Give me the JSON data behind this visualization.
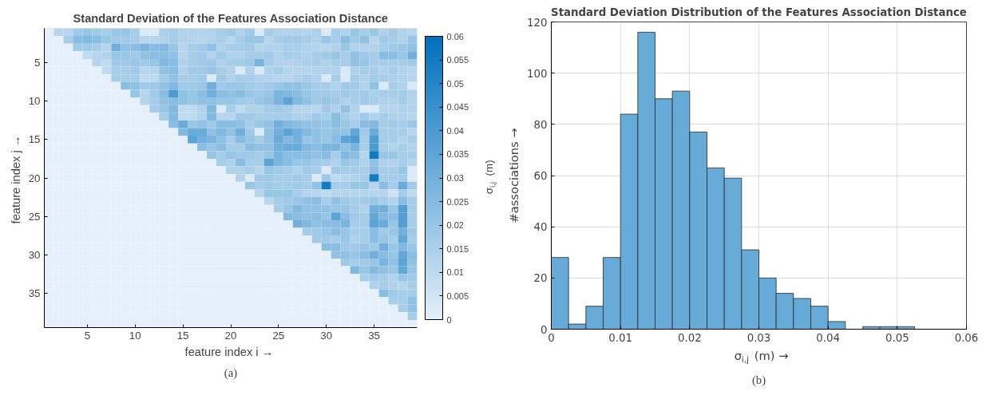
{
  "chart_data": [
    {
      "type": "heatmap",
      "title": "Standard Deviation of the Features Association Distance",
      "xlabel": "feature index i  →",
      "ylabel": "feature index j  →",
      "clabel": "σ$_{i,j}$ (m)",
      "annotations": [
        "(a)"
      ],
      "categories": [
        null,
        null,
        null,
        null,
        "5",
        null,
        null,
        null,
        null,
        "10",
        null,
        null,
        null,
        null,
        "15",
        null,
        null,
        null,
        null,
        "20",
        null,
        null,
        null,
        null,
        "25",
        null,
        null,
        null,
        null,
        "30",
        null,
        null,
        null,
        null,
        "35",
        null,
        null,
        null,
        null
      ],
      "y_categories": [
        null,
        null,
        null,
        null,
        "5",
        null,
        null,
        null,
        null,
        "10",
        null,
        null,
        null,
        null,
        "15",
        null,
        null,
        null,
        null,
        "20",
        null,
        null,
        null,
        null,
        "25",
        null,
        null,
        null,
        null,
        "30",
        null,
        null,
        null,
        null,
        "35",
        null,
        null,
        null,
        null
      ],
      "clim": [
        0,
        0.06
      ],
      "cticks": [
        0,
        0.005,
        0.01,
        0.015,
        0.02,
        0.025,
        0.03,
        0.035,
        0.04,
        0.045,
        0.05,
        0.055,
        0.06
      ],
      "cells": [
        [
          0,
          0.012,
          0.012,
          0.018,
          0.02,
          0.018,
          0.016,
          0.02,
          0.02,
          0.016,
          0.003,
          0.003,
          0.015,
          0.016,
          0.014,
          0.014,
          0.013,
          0.014,
          0.016,
          0.018,
          0.014,
          0.018,
          0.003,
          0.016,
          0.014,
          0.013,
          0.014,
          0.013,
          0.015,
          0.003,
          0.016,
          0.014,
          0.02,
          0.016,
          0.02,
          0.014,
          0.017,
          0.014,
          0.012
        ],
        [
          0,
          0,
          0.016,
          0.024,
          0.026,
          0.024,
          0.02,
          0.018,
          0.018,
          0.016,
          0.012,
          0.012,
          0.014,
          0.016,
          0.014,
          0.013,
          0.012,
          0.014,
          0.015,
          0.012,
          0.016,
          0.02,
          0.02,
          0.012,
          0.016,
          0.018,
          0.018,
          0.016,
          0.014,
          0.02,
          0.016,
          0.024,
          0.018,
          0.022,
          0.012,
          0.018,
          0.016,
          0.014,
          0.02
        ],
        [
          0,
          0,
          0,
          0.018,
          0.018,
          0.016,
          0.012,
          0.03,
          0.022,
          0.024,
          0.028,
          0.024,
          0.026,
          0.02,
          0.012,
          0.016,
          0.018,
          0.022,
          0.014,
          0.016,
          0.016,
          0.018,
          0.012,
          0.014,
          0.014,
          0.016,
          0.015,
          0.014,
          0.013,
          0.012,
          0.014,
          0.02,
          0.014,
          0.013,
          0.014,
          0.016,
          0.018,
          0.02,
          0.022
        ],
        [
          0,
          0,
          0,
          0,
          0.01,
          0.012,
          0.014,
          0.02,
          0.02,
          0.018,
          0.022,
          0.024,
          0.024,
          0.022,
          0.012,
          0.016,
          0.018,
          0.014,
          0.018,
          0.014,
          0.014,
          0.016,
          0.016,
          0.018,
          0.014,
          0.016,
          0.015,
          0.014,
          0.016,
          0.018,
          0.02,
          0.016,
          0.022,
          0.018,
          0.016,
          0.024,
          0.024,
          0.02,
          0.03
        ],
        [
          0,
          0,
          0,
          0,
          0,
          0.012,
          0.01,
          0.018,
          0.018,
          0.02,
          0.018,
          0.02,
          0.026,
          0.024,
          0.014,
          0.016,
          0.018,
          0.018,
          0.014,
          0.016,
          0.016,
          0.018,
          0.028,
          0.016,
          0.014,
          0.013,
          0.014,
          0.015,
          0.016,
          0.014,
          0.016,
          0.016,
          0.022,
          0.02,
          0.016,
          0.016,
          0.016,
          0.016,
          0.018
        ],
        [
          0,
          0,
          0,
          0,
          0,
          0,
          0.01,
          0.016,
          0.016,
          0.018,
          0.012,
          0.012,
          0.022,
          0.024,
          0.014,
          0.018,
          0.018,
          0.02,
          0.016,
          0.014,
          0.003,
          0.014,
          0.003,
          0.014,
          0.016,
          0.013,
          0.012,
          0.012,
          0.014,
          0.014,
          0.014,
          0.003,
          0.014,
          0.016,
          0.016,
          0.014,
          0.016,
          0.014,
          0.012
        ],
        [
          0,
          0,
          0,
          0,
          0,
          0,
          0,
          0.016,
          0.016,
          0.016,
          0.01,
          0.01,
          0.018,
          0.022,
          0.016,
          0.016,
          0.018,
          0.003,
          0.018,
          0.014,
          0.016,
          0.016,
          0.014,
          0.013,
          0.012,
          0.012,
          0.014,
          0.016,
          0.014,
          0.003,
          0.016,
          0.003,
          0.016,
          0.014,
          0.018,
          0.016,
          0.015,
          0.014,
          0.012
        ],
        [
          0,
          0,
          0,
          0,
          0,
          0,
          0,
          0,
          0.024,
          0.022,
          0.018,
          0.018,
          0.022,
          0.026,
          0.018,
          0.018,
          0.02,
          0.03,
          0.018,
          0.02,
          0.02,
          0.018,
          0.016,
          0.018,
          0.02,
          0.022,
          0.022,
          0.02,
          0.016,
          0.016,
          0.014,
          0.018,
          0.018,
          0.014,
          0.022,
          0.003,
          0.016,
          0.014,
          0.003
        ],
        [
          0,
          0,
          0,
          0,
          0,
          0,
          0,
          0,
          0,
          0.02,
          0.012,
          0.018,
          0.024,
          0.04,
          0.022,
          0.02,
          0.024,
          0.03,
          0.024,
          0.022,
          0.024,
          0.02,
          0.018,
          0.02,
          0.028,
          0.026,
          0.024,
          0.02,
          0.018,
          0.018,
          0.016,
          0.018,
          0.016,
          0.018,
          0.015,
          0.016,
          0.016,
          0.016,
          0.014
        ],
        [
          0,
          0,
          0,
          0,
          0,
          0,
          0,
          0,
          0,
          0,
          0.012,
          0.016,
          0.022,
          0.024,
          0.022,
          0.02,
          0.022,
          0.022,
          0.02,
          0.02,
          0.018,
          0.016,
          0.02,
          0.022,
          0.028,
          0.036,
          0.026,
          0.022,
          0.018,
          0.02,
          0.018,
          0.014,
          0.016,
          0.018,
          0.016,
          0.014,
          0.014,
          0.016,
          0.014
        ],
        [
          0,
          0,
          0,
          0,
          0,
          0,
          0,
          0,
          0,
          0,
          0,
          0.016,
          0.02,
          0.026,
          0.01,
          0.01,
          0.014,
          0.026,
          0.003,
          0.016,
          0.01,
          0.014,
          0.014,
          0.016,
          0.018,
          0.016,
          0.012,
          0.012,
          0.012,
          0.018,
          0.014,
          0.022,
          0.014,
          0.003,
          0.003,
          0.012,
          0.012,
          0.014,
          0.014
        ],
        [
          0,
          0,
          0,
          0,
          0,
          0,
          0,
          0,
          0,
          0,
          0,
          0,
          0.016,
          0.026,
          0.01,
          0.01,
          0.014,
          0.026,
          0.012,
          0.012,
          0.018,
          0.018,
          0.016,
          0.016,
          0.016,
          0.016,
          0.014,
          0.014,
          0.018,
          0.016,
          0.024,
          0.016,
          0.014,
          0.018,
          0.014,
          0.016,
          0.014,
          0.014,
          0.012
        ],
        [
          0,
          0,
          0,
          0,
          0,
          0,
          0,
          0,
          0,
          0,
          0,
          0,
          0,
          0.024,
          0.032,
          0.02,
          0.022,
          0.018,
          0.024,
          0.024,
          0.022,
          0.016,
          0.02,
          0.022,
          0.03,
          0.026,
          0.024,
          0.022,
          0.022,
          0.02,
          0.024,
          0.02,
          0.016,
          0.024,
          0.026,
          0.016,
          0.018,
          0.016,
          0.02
        ],
        [
          0,
          0,
          0,
          0,
          0,
          0,
          0,
          0,
          0,
          0,
          0,
          0,
          0,
          0,
          0.026,
          0.032,
          0.032,
          0.022,
          0.026,
          0.022,
          0.03,
          0.018,
          0.003,
          0.022,
          0.03,
          0.036,
          0.03,
          0.026,
          0.022,
          0.02,
          0.022,
          0.022,
          0.034,
          0.018,
          0.032,
          0.016,
          0.016,
          0.016,
          0.012
        ],
        [
          0,
          0,
          0,
          0,
          0,
          0,
          0,
          0,
          0,
          0,
          0,
          0,
          0,
          0,
          0,
          0.036,
          0.03,
          0.028,
          0.022,
          0.016,
          0.024,
          0.02,
          0.016,
          0.022,
          0.032,
          0.026,
          0.03,
          0.02,
          0.022,
          0.02,
          0.024,
          0.036,
          0.04,
          0.016,
          0.04,
          0.016,
          0.016,
          0.014,
          0.016
        ],
        [
          0,
          0,
          0,
          0,
          0,
          0,
          0,
          0,
          0,
          0,
          0,
          0,
          0,
          0,
          0,
          0,
          0.024,
          0.02,
          0.024,
          0.016,
          0.016,
          0.024,
          0.022,
          0.022,
          0.03,
          0.032,
          0.032,
          0.026,
          0.024,
          0.028,
          0.028,
          0.022,
          0.028,
          0.016,
          0.04,
          0.016,
          0.014,
          0.016,
          0.014
        ],
        [
          0,
          0,
          0,
          0,
          0,
          0,
          0,
          0,
          0,
          0,
          0,
          0,
          0,
          0,
          0,
          0,
          0,
          0.02,
          0.016,
          0.02,
          0.018,
          0.018,
          0.016,
          0.02,
          0.028,
          0.024,
          0.024,
          0.024,
          0.022,
          0.024,
          0.016,
          0.026,
          0.024,
          0.012,
          0.055,
          0.02,
          0.02,
          0.016,
          0.016
        ],
        [
          0,
          0,
          0,
          0,
          0,
          0,
          0,
          0,
          0,
          0,
          0,
          0,
          0,
          0,
          0,
          0,
          0,
          0,
          0.016,
          0.014,
          0.024,
          0.016,
          0.016,
          0.036,
          0.028,
          0.024,
          0.02,
          0.02,
          0.018,
          0.016,
          0.014,
          0.02,
          0.018,
          0.014,
          0.022,
          0.014,
          0.014,
          0.016,
          0.012
        ],
        [
          0,
          0,
          0,
          0,
          0,
          0,
          0,
          0,
          0,
          0,
          0,
          0,
          0,
          0,
          0,
          0,
          0,
          0,
          0,
          0.014,
          0.014,
          0.016,
          0.012,
          0.02,
          0.018,
          0.016,
          0.014,
          0.018,
          0.016,
          0.003,
          0.018,
          0.016,
          0.016,
          0.016,
          0.024,
          0.016,
          0.016,
          0.02,
          0.003
        ],
        [
          0,
          0,
          0,
          0,
          0,
          0,
          0,
          0,
          0,
          0,
          0,
          0,
          0,
          0,
          0,
          0,
          0,
          0,
          0,
          0,
          0.014,
          0.003,
          0.018,
          0.018,
          0.016,
          0.016,
          0.018,
          0.016,
          0.003,
          0.018,
          0.01,
          0.012,
          0.014,
          0.016,
          0.055,
          0.016,
          0.016,
          0.018,
          0.003
        ],
        [
          0,
          0,
          0,
          0,
          0,
          0,
          0,
          0,
          0,
          0,
          0,
          0,
          0,
          0,
          0,
          0,
          0,
          0,
          0,
          0,
          0,
          0.02,
          0.016,
          0.018,
          0.016,
          0.016,
          0.018,
          0.016,
          0.022,
          0.055,
          0.016,
          0.016,
          0.02,
          0.02,
          0.012,
          0.024,
          0.016,
          0.032,
          0.018
        ],
        [
          0,
          0,
          0,
          0,
          0,
          0,
          0,
          0,
          0,
          0,
          0,
          0,
          0,
          0,
          0,
          0,
          0,
          0,
          0,
          0,
          0,
          0,
          0.012,
          0.02,
          0.02,
          0.02,
          0.016,
          0.012,
          0.012,
          0.01,
          0.012,
          0.012,
          0.012,
          0.012,
          0.012,
          0.012,
          0.006,
          0.016,
          0.01
        ],
        [
          0,
          0,
          0,
          0,
          0,
          0,
          0,
          0,
          0,
          0,
          0,
          0,
          0,
          0,
          0,
          0,
          0,
          0,
          0,
          0,
          0,
          0,
          0,
          0.012,
          0.016,
          0.018,
          0.02,
          0.022,
          0.024,
          0.016,
          0.022,
          0.018,
          0.016,
          0.018,
          0.02,
          0.016,
          0.014,
          0.024,
          0.016
        ],
        [
          0,
          0,
          0,
          0,
          0,
          0,
          0,
          0,
          0,
          0,
          0,
          0,
          0,
          0,
          0,
          0,
          0,
          0,
          0,
          0,
          0,
          0,
          0,
          0,
          0.016,
          0.02,
          0.026,
          0.022,
          0.022,
          0.022,
          0.02,
          0.02,
          0.016,
          0.014,
          0.03,
          0.03,
          0.02,
          0.038,
          0.016
        ],
        [
          0,
          0,
          0,
          0,
          0,
          0,
          0,
          0,
          0,
          0,
          0,
          0,
          0,
          0,
          0,
          0,
          0,
          0,
          0,
          0,
          0,
          0,
          0,
          0,
          0,
          0.026,
          0.024,
          0.022,
          0.024,
          0.02,
          0.036,
          0.024,
          0.018,
          0.016,
          0.034,
          0.026,
          0.024,
          0.038,
          0.016
        ],
        [
          0,
          0,
          0,
          0,
          0,
          0,
          0,
          0,
          0,
          0,
          0,
          0,
          0,
          0,
          0,
          0,
          0,
          0,
          0,
          0,
          0,
          0,
          0,
          0,
          0,
          0,
          0.03,
          0.026,
          0.022,
          0.024,
          0.024,
          0.028,
          0.016,
          0.016,
          0.036,
          0.032,
          0.02,
          0.038,
          0.016
        ],
        [
          0,
          0,
          0,
          0,
          0,
          0,
          0,
          0,
          0,
          0,
          0,
          0,
          0,
          0,
          0,
          0,
          0,
          0,
          0,
          0,
          0,
          0,
          0,
          0,
          0,
          0,
          0,
          0.016,
          0.018,
          0.02,
          0.024,
          0.02,
          0.016,
          0.016,
          0.024,
          0.018,
          0.02,
          0.03,
          0.018
        ],
        [
          0,
          0,
          0,
          0,
          0,
          0,
          0,
          0,
          0,
          0,
          0,
          0,
          0,
          0,
          0,
          0,
          0,
          0,
          0,
          0,
          0,
          0,
          0,
          0,
          0,
          0,
          0,
          0,
          0.018,
          0.018,
          0.016,
          0.02,
          0.014,
          0.016,
          0.024,
          0.02,
          0.016,
          0.034,
          0.016
        ],
        [
          0,
          0,
          0,
          0,
          0,
          0,
          0,
          0,
          0,
          0,
          0,
          0,
          0,
          0,
          0,
          0,
          0,
          0,
          0,
          0,
          0,
          0,
          0,
          0,
          0,
          0,
          0,
          0,
          0,
          0.024,
          0.024,
          0.018,
          0.018,
          0.02,
          0.018,
          0.03,
          0.02,
          0.026,
          0.02
        ],
        [
          0,
          0,
          0,
          0,
          0,
          0,
          0,
          0,
          0,
          0,
          0,
          0,
          0,
          0,
          0,
          0,
          0,
          0,
          0,
          0,
          0,
          0,
          0,
          0,
          0,
          0,
          0,
          0,
          0,
          0,
          0.022,
          0.022,
          0.02,
          0.024,
          0.03,
          0.024,
          0.02,
          0.034,
          0.024
        ],
        [
          0,
          0,
          0,
          0,
          0,
          0,
          0,
          0,
          0,
          0,
          0,
          0,
          0,
          0,
          0,
          0,
          0,
          0,
          0,
          0,
          0,
          0,
          0,
          0,
          0,
          0,
          0,
          0,
          0,
          0,
          0,
          0.018,
          0.016,
          0.018,
          0.02,
          0.028,
          0.022,
          0.036,
          0.022
        ],
        [
          0,
          0,
          0,
          0,
          0,
          0,
          0,
          0,
          0,
          0,
          0,
          0,
          0,
          0,
          0,
          0,
          0,
          0,
          0,
          0,
          0,
          0,
          0,
          0,
          0,
          0,
          0,
          0,
          0,
          0,
          0,
          0,
          0.026,
          0.02,
          0.026,
          0.022,
          0.02,
          0.034,
          0.02
        ],
        [
          0,
          0,
          0,
          0,
          0,
          0,
          0,
          0,
          0,
          0,
          0,
          0,
          0,
          0,
          0,
          0,
          0,
          0,
          0,
          0,
          0,
          0,
          0,
          0,
          0,
          0,
          0,
          0,
          0,
          0,
          0,
          0,
          0,
          0.016,
          0.018,
          0.016,
          0.014,
          0.02,
          0.018
        ],
        [
          0,
          0,
          0,
          0,
          0,
          0,
          0,
          0,
          0,
          0,
          0,
          0,
          0,
          0,
          0,
          0,
          0,
          0,
          0,
          0,
          0,
          0,
          0,
          0,
          0,
          0,
          0,
          0,
          0,
          0,
          0,
          0,
          0,
          0,
          0.014,
          0.016,
          0.014,
          0.012,
          0.016
        ],
        [
          0,
          0,
          0,
          0,
          0,
          0,
          0,
          0,
          0,
          0,
          0,
          0,
          0,
          0,
          0,
          0,
          0,
          0,
          0,
          0,
          0,
          0,
          0,
          0,
          0,
          0,
          0,
          0,
          0,
          0,
          0,
          0,
          0,
          0,
          0,
          0.024,
          0.018,
          0.016,
          0.016
        ],
        [
          0,
          0,
          0,
          0,
          0,
          0,
          0,
          0,
          0,
          0,
          0,
          0,
          0,
          0,
          0,
          0,
          0,
          0,
          0,
          0,
          0,
          0,
          0,
          0,
          0,
          0,
          0,
          0,
          0,
          0,
          0,
          0,
          0,
          0,
          0,
          0,
          0.016,
          0.016,
          0.022
        ],
        [
          0,
          0,
          0,
          0,
          0,
          0,
          0,
          0,
          0,
          0,
          0,
          0,
          0,
          0,
          0,
          0,
          0,
          0,
          0,
          0,
          0,
          0,
          0,
          0,
          0,
          0,
          0,
          0,
          0,
          0,
          0,
          0,
          0,
          0,
          0,
          0,
          0,
          0.016,
          0.022
        ],
        [
          0,
          0,
          0,
          0,
          0,
          0,
          0,
          0,
          0,
          0,
          0,
          0,
          0,
          0,
          0,
          0,
          0,
          0,
          0,
          0,
          0,
          0,
          0,
          0,
          0,
          0,
          0,
          0,
          0,
          0,
          0,
          0,
          0,
          0,
          0,
          0,
          0,
          0,
          0.016
        ],
        [
          0,
          0,
          0,
          0,
          0,
          0,
          0,
          0,
          0,
          0,
          0,
          0,
          0,
          0,
          0,
          0,
          0,
          0,
          0,
          0,
          0,
          0,
          0,
          0,
          0,
          0,
          0,
          0,
          0,
          0,
          0,
          0,
          0,
          0,
          0,
          0,
          0,
          0,
          0
        ]
      ]
    },
    {
      "type": "histogram",
      "title": "Standard Deviation Distribution of the Features Association Distance",
      "xlabel": "σ$_{i,j}$ (m) →",
      "ylabel": "#associations →",
      "annotations": [
        "(b)"
      ],
      "bins": [
        0,
        0.0025,
        0.005,
        0.0075,
        0.01,
        0.0125,
        0.015,
        0.0175,
        0.02,
        0.0225,
        0.025,
        0.0275,
        0.03,
        0.0325,
        0.035,
        0.0375,
        0.04,
        0.0425,
        0.045,
        0.0475,
        0.05,
        0.0525
      ],
      "values": [
        28,
        2,
        9,
        28,
        84,
        116,
        90,
        93,
        77,
        63,
        59,
        31,
        20,
        14,
        12,
        9,
        3,
        0,
        1,
        1,
        1
      ],
      "color": "#66aad7",
      "xlim": [
        0,
        0.06
      ],
      "xticks": [
        0,
        0.01,
        0.02,
        0.03,
        0.04,
        0.05,
        0.06
      ],
      "ylim": [
        0,
        120
      ],
      "yticks": [
        0,
        20,
        40,
        60,
        80,
        100,
        120
      ],
      "grid": true
    }
  ]
}
